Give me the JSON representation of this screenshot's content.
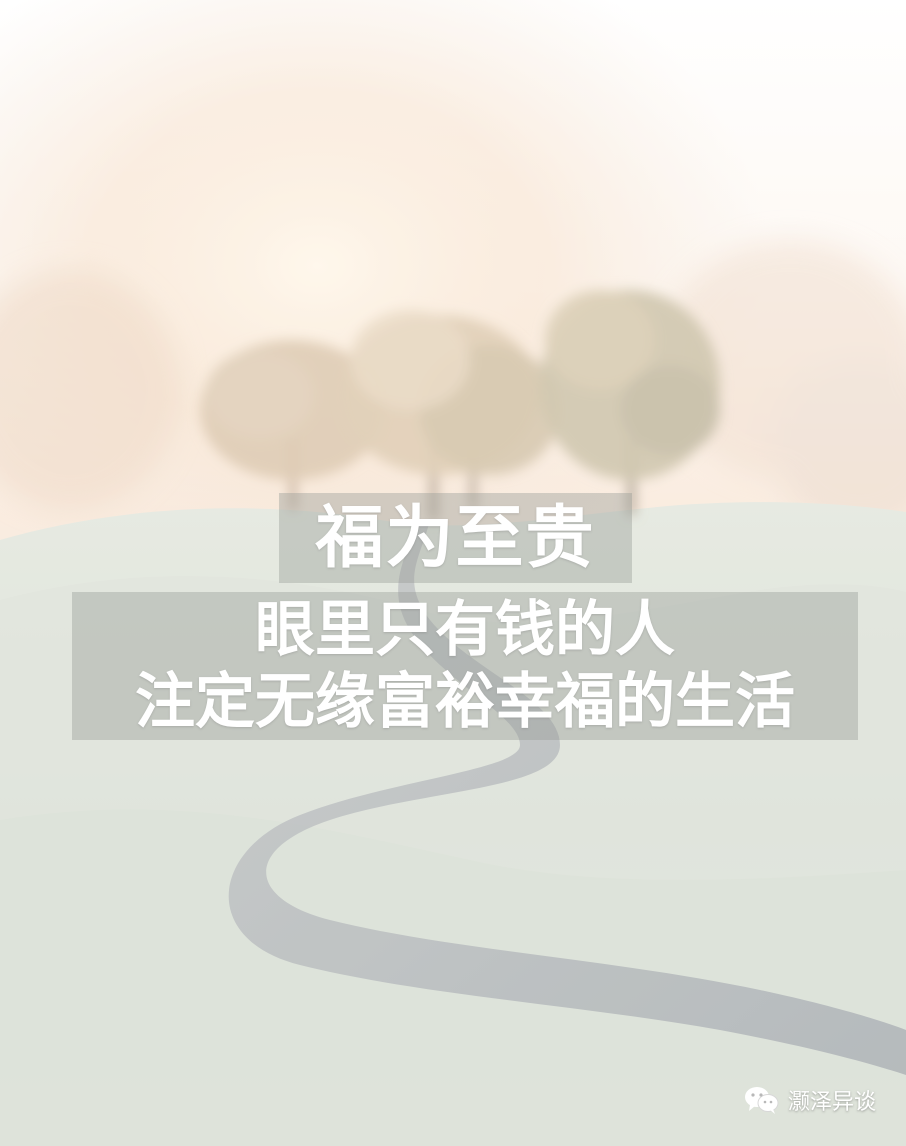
{
  "poster": {
    "headline": "福为至贵",
    "lines": [
      "眼里只有钱的人",
      "注定无缘富裕幸福的生活"
    ]
  },
  "watermark": {
    "icon": "wechat-icon",
    "text": "灏泽异谈"
  },
  "colors": {
    "sky": "#fbf3ea",
    "glow": "#f6dcc4",
    "grass": "#d7ddd3",
    "path": "#9fa6ab",
    "tree": "#c8b79c",
    "text": "#ffffff"
  }
}
